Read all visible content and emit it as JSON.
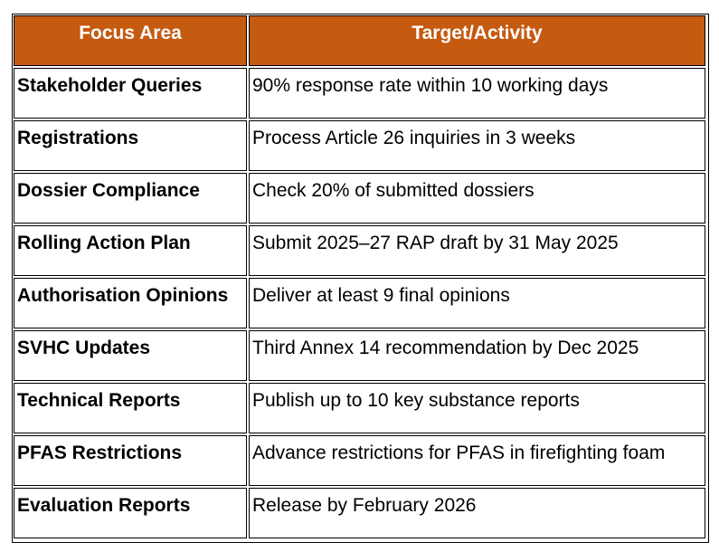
{
  "table": {
    "headers": {
      "focus_area": "Focus Area",
      "target_activity": "Target/Activity"
    },
    "rows": [
      {
        "area": "Stakeholder Queries",
        "target": "90% response rate within 10 working days"
      },
      {
        "area": "Registrations",
        "target": "Process Article 26 inquiries in 3 weeks"
      },
      {
        "area": "Dossier Compliance",
        "target": "Check 20% of submitted dossiers"
      },
      {
        "area": "Rolling Action Plan",
        "target": "Submit 2025–27 RAP draft by 31 May 2025"
      },
      {
        "area": "Authorisation Opinions",
        "target": "Deliver at least 9 final opinions"
      },
      {
        "area": "SVHC Updates",
        "target": "Third Annex 14 recommendation by Dec 2025"
      },
      {
        "area": "Technical Reports",
        "target": "Publish up to 10 key substance reports"
      },
      {
        "area": "PFAS Restrictions",
        "target": "Advance restrictions for PFAS in firefighting foam"
      },
      {
        "area": "Evaluation Reports",
        "target": "Release by February 2026"
      }
    ]
  },
  "colors": {
    "header_background": "#c55a11",
    "header_text": "#ffffff",
    "border": "#000000"
  }
}
